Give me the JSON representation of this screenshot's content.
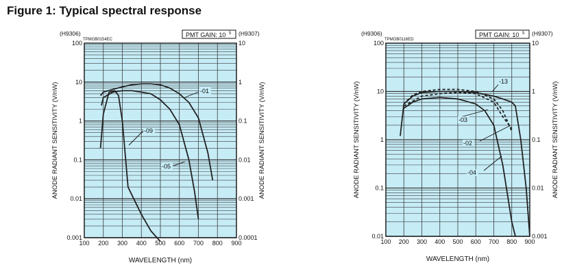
{
  "figure_title": "Figure 1: Typical spectral response",
  "colors": {
    "plot_bg": "#c6ecf6",
    "grid": "#3a3a3a",
    "curve": "#222222"
  },
  "chart_data": [
    {
      "type": "line",
      "yscale": "log",
      "xlabel": "WAVELENGTH (nm)",
      "ylabel_left": "ANODE RADIANT SENSITIVITY (V/nW)",
      "ylabel_right": "ANODE RADIANT SENSITIVITY (V/nW)",
      "left_header": "(H9306)",
      "right_header": "(H9307)",
      "code": "TPMOB0154EC",
      "gain_label": "PMT GAIN: 10",
      "gain_exp": "5",
      "xlim": [
        100,
        900
      ],
      "ylim": [
        0.001,
        100
      ],
      "x_ticks": [
        "100",
        "200",
        "300",
        "400",
        "500",
        "600",
        "700",
        "800",
        "900"
      ],
      "y_ticks_left": [
        "0.001",
        "0.01",
        "0.1",
        "1",
        "10",
        "100"
      ],
      "y_ticks_right": [
        "0.0001",
        "0.001",
        "0.01",
        "0.1",
        "1",
        "10"
      ],
      "grid": true,
      "series": [
        {
          "name": "-01",
          "x": [
            185,
            200,
            250,
            300,
            350,
            400,
            450,
            500,
            550,
            600,
            650,
            700,
            750,
            775
          ],
          "y": [
            4.5,
            5.5,
            6.5,
            7.5,
            8.5,
            9,
            9,
            8.5,
            7,
            5,
            3,
            1.2,
            0.15,
            0.03
          ]
        },
        {
          "name": "-05",
          "x": [
            190,
            200,
            250,
            300,
            350,
            400,
            450,
            500,
            550,
            600,
            650,
            680,
            700
          ],
          "y": [
            2.5,
            4,
            5.5,
            6,
            6,
            5.5,
            5,
            3.5,
            2,
            0.8,
            0.1,
            0.015,
            0.003
          ]
        },
        {
          "name": "-09",
          "x": [
            185,
            200,
            230,
            260,
            280,
            300,
            330,
            360,
            400,
            450,
            500
          ],
          "y": [
            0.2,
            1.5,
            5.5,
            6,
            4.5,
            1,
            0.02,
            0.01,
            0.004,
            0.0015,
            0.0008
          ]
        }
      ]
    },
    {
      "type": "line",
      "yscale": "log",
      "xlabel": "WAVELENGTH (nm)",
      "ylabel_left": "ANODE RADIANT SENSITIVITY (V/nW)",
      "ylabel_right": "ANODE RADIANT SENSITIVITY (V/nW)",
      "left_header": "(H9306)",
      "right_header": "(H9307)",
      "code": "TPMOB0116ED",
      "gain_label": "PMT GAIN: 10",
      "gain_exp": "5",
      "xlim": [
        100,
        900
      ],
      "ylim": [
        0.01,
        100
      ],
      "x_ticks": [
        "100",
        "200",
        "300",
        "400",
        "500",
        "600",
        "700",
        "800",
        "900"
      ],
      "y_ticks_left": [
        "0.01",
        "0.1",
        "1",
        "10",
        "100"
      ],
      "y_ticks_right": [
        "0.001",
        "0.01",
        "0.1",
        "1",
        "10"
      ],
      "grid": true,
      "series": [
        {
          "name": "-13",
          "style": "solid",
          "x": [
            180,
            200,
            250,
            300,
            400,
            500,
            600,
            700,
            750,
            800,
            820,
            850,
            880,
            900
          ],
          "y": [
            1.2,
            5.5,
            8,
            9.5,
            10,
            10,
            9.5,
            8,
            7,
            6,
            5,
            1,
            0.1,
            0.01
          ]
        },
        {
          "name": "-02",
          "style": "dashed",
          "x": [
            200,
            250,
            300,
            400,
            500,
            600,
            700,
            750,
            800
          ],
          "y": [
            5.5,
            8.5,
            10,
            11,
            11,
            10,
            7,
            4,
            1.5
          ]
        },
        {
          "name": "-03",
          "style": "dashed",
          "x": [
            200,
            300,
            400,
            500,
            600,
            700,
            750,
            800
          ],
          "y": [
            5,
            8,
            9,
            9.5,
            9,
            6,
            3,
            1.7
          ]
        },
        {
          "name": "-04",
          "style": "solid",
          "x": [
            200,
            250,
            300,
            400,
            500,
            600,
            650,
            700,
            750,
            800,
            820
          ],
          "y": [
            4.5,
            6,
            7,
            7.5,
            7,
            5.5,
            4,
            2,
            0.3,
            0.02,
            0.01
          ]
        }
      ]
    }
  ]
}
